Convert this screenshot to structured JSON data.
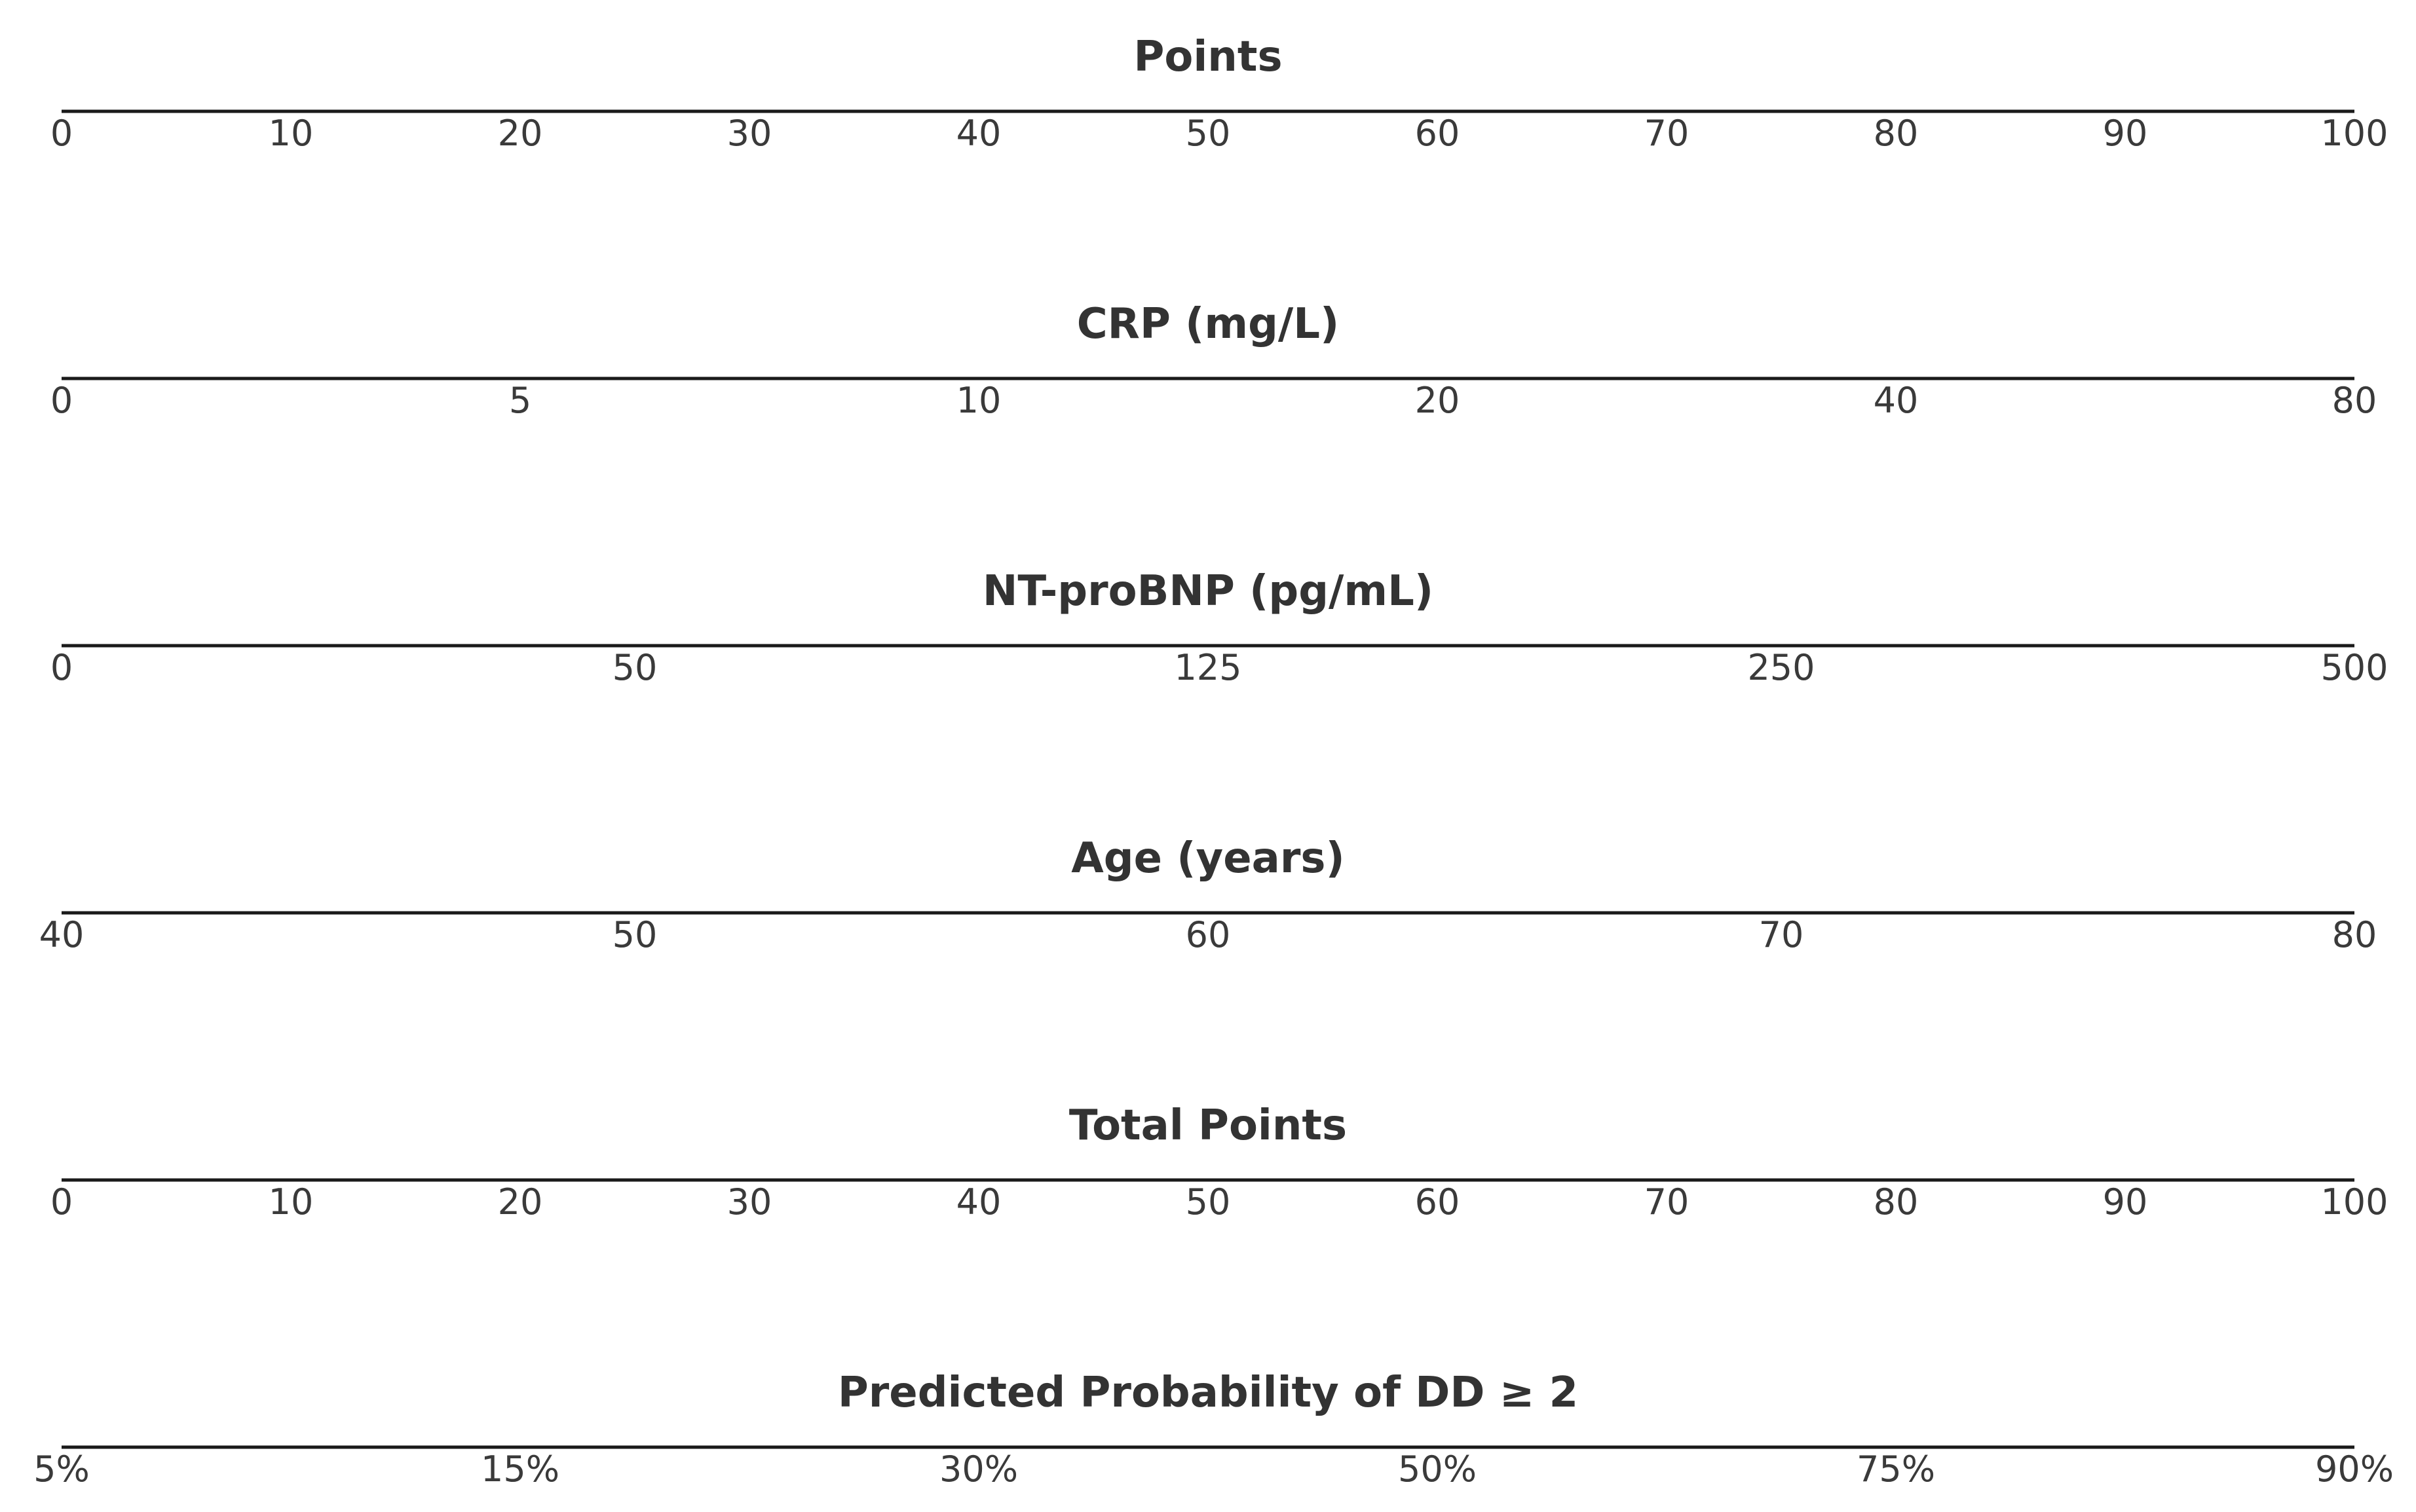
{
  "chart_data": {
    "type": "nomogram",
    "axes": [
      {
        "title": "Points",
        "ticks": [
          {
            "label": "0",
            "points": 0
          },
          {
            "label": "10",
            "points": 10
          },
          {
            "label": "20",
            "points": 20
          },
          {
            "label": "30",
            "points": 30
          },
          {
            "label": "40",
            "points": 40
          },
          {
            "label": "50",
            "points": 50
          },
          {
            "label": "60",
            "points": 60
          },
          {
            "label": "70",
            "points": 70
          },
          {
            "label": "80",
            "points": 80
          },
          {
            "label": "90",
            "points": 90
          },
          {
            "label": "100",
            "points": 100
          }
        ]
      },
      {
        "title": "CRP (mg/L)",
        "ticks": [
          {
            "label": "0",
            "points": 0
          },
          {
            "label": "5",
            "points": 20
          },
          {
            "label": "10",
            "points": 40
          },
          {
            "label": "20",
            "points": 60
          },
          {
            "label": "40",
            "points": 80
          },
          {
            "label": "80",
            "points": 100
          }
        ]
      },
      {
        "title": "NT-proBNP (pg/mL)",
        "ticks": [
          {
            "label": "0",
            "points": 0
          },
          {
            "label": "50",
            "points": 25
          },
          {
            "label": "125",
            "points": 50
          },
          {
            "label": "250",
            "points": 75
          },
          {
            "label": "500",
            "points": 100
          }
        ]
      },
      {
        "title": "Age (years)",
        "ticks": [
          {
            "label": "40",
            "points": 0
          },
          {
            "label": "50",
            "points": 25
          },
          {
            "label": "60",
            "points": 50
          },
          {
            "label": "70",
            "points": 75
          },
          {
            "label": "80",
            "points": 100
          }
        ]
      },
      {
        "title": "Total Points",
        "ticks": [
          {
            "label": "0",
            "points": 0
          },
          {
            "label": "10",
            "points": 10
          },
          {
            "label": "20",
            "points": 20
          },
          {
            "label": "30",
            "points": 30
          },
          {
            "label": "40",
            "points": 40
          },
          {
            "label": "50",
            "points": 50
          },
          {
            "label": "60",
            "points": 60
          },
          {
            "label": "70",
            "points": 70
          },
          {
            "label": "80",
            "points": 80
          },
          {
            "label": "90",
            "points": 90
          },
          {
            "label": "100",
            "points": 100
          }
        ]
      },
      {
        "title": "Predicted Probability of DD ≥ 2",
        "ticks": [
          {
            "label": "5%",
            "points": 0
          },
          {
            "label": "15%",
            "points": 20
          },
          {
            "label": "30%",
            "points": 40
          },
          {
            "label": "50%",
            "points": 60
          },
          {
            "label": "75%",
            "points": 80
          },
          {
            "label": "90%",
            "points": 100
          }
        ]
      }
    ],
    "points_range": [
      0,
      100
    ],
    "grid": false,
    "legend": "none",
    "colors": {
      "text": "#333333",
      "axis_line": "#1a1a1a",
      "background": "#ffffff"
    }
  }
}
